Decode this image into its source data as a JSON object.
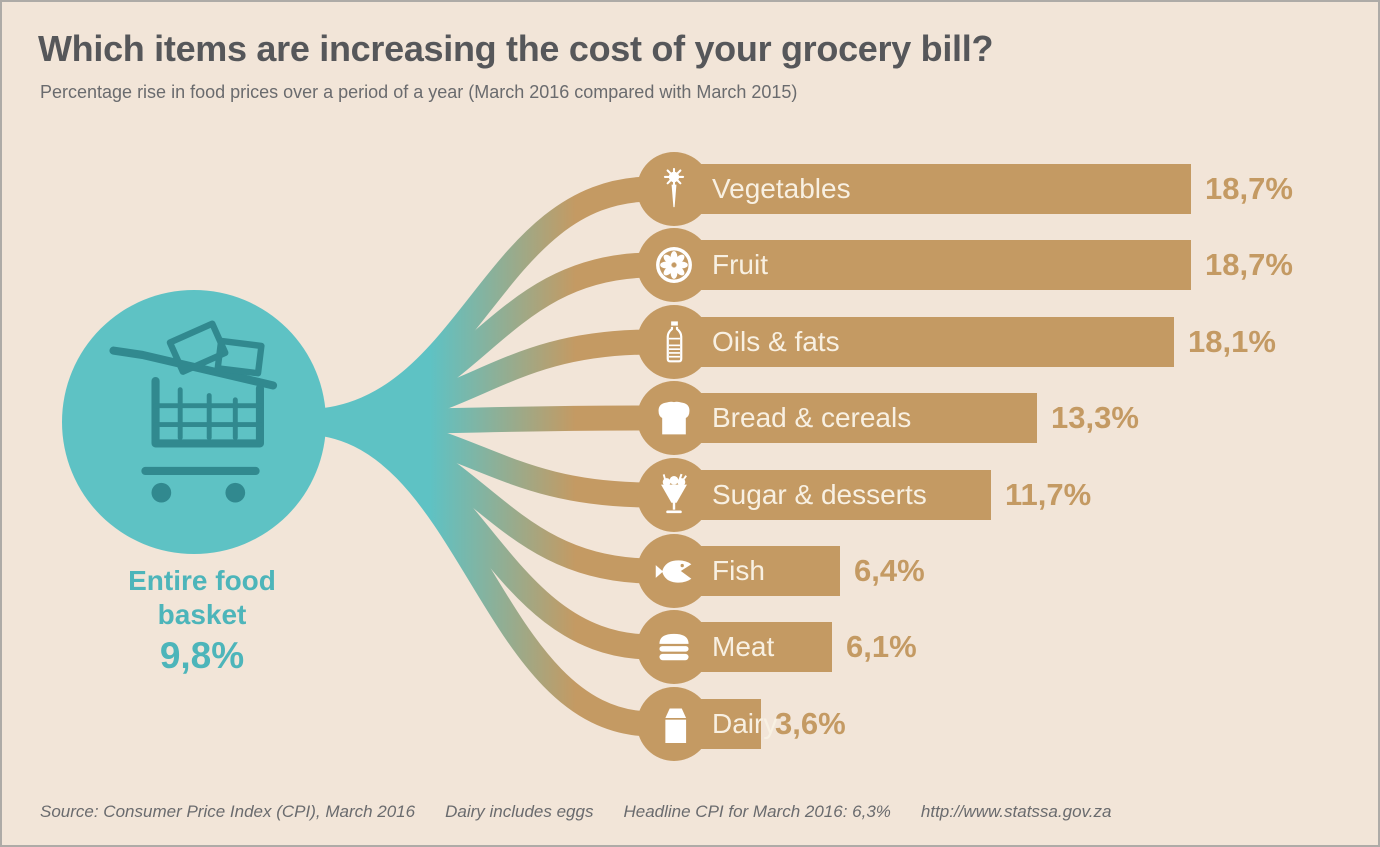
{
  "header": {
    "title": "Which items are increasing the cost of your grocery bill?",
    "subtitle": "Percentage rise in food prices over a period of a year (March 2016 compared with March 2015)"
  },
  "hub": {
    "label_line1": "Entire food",
    "label_line2": "basket",
    "value_label": "9,8%"
  },
  "chart_data": {
    "type": "bar",
    "orientation": "horizontal",
    "title": "Which items are increasing the cost of your grocery bill?",
    "subtitle": "Percentage rise in food prices over a period of a year (March 2016 compared with March 2015)",
    "unit": "%",
    "categories": [
      "Vegetables",
      "Fruit",
      "Oils & fats",
      "Bread & cereals",
      "Sugar & desserts",
      "Fish",
      "Meat",
      "Dairy"
    ],
    "values": [
      18.7,
      18.7,
      18.1,
      13.3,
      11.7,
      6.4,
      6.1,
      3.6
    ],
    "value_labels": [
      "18,7%",
      "18,7%",
      "18,1%",
      "13,3%",
      "11,7%",
      "6,4%",
      "6,1%",
      "3,6%"
    ],
    "icons": [
      "carrot-icon",
      "citrus-slice-icon",
      "oil-bottle-icon",
      "bread-icon",
      "sundae-icon",
      "fish-icon",
      "burger-icon",
      "milk-carton-icon"
    ],
    "hub_label": "Entire food basket",
    "hub_value": 9.8,
    "hub_value_label": "9,8%",
    "hub_icon": "shopping-cart-icon",
    "colors": {
      "bar": "#c49a63",
      "bar_text": "#f8f0e2",
      "value_text": "#c49a63",
      "hub_circle": "#5ec2c4",
      "hub_icon": "#31898f",
      "hub_text": "#4db5ba",
      "background": "#f2e5d8"
    }
  },
  "footer": {
    "source": "Source: Consumer Price Index (CPI), March 2016",
    "note1": "Dairy includes eggs",
    "note2": "Headline CPI for March 2016: 6,3%",
    "url": "http://www.statssa.gov.za"
  }
}
